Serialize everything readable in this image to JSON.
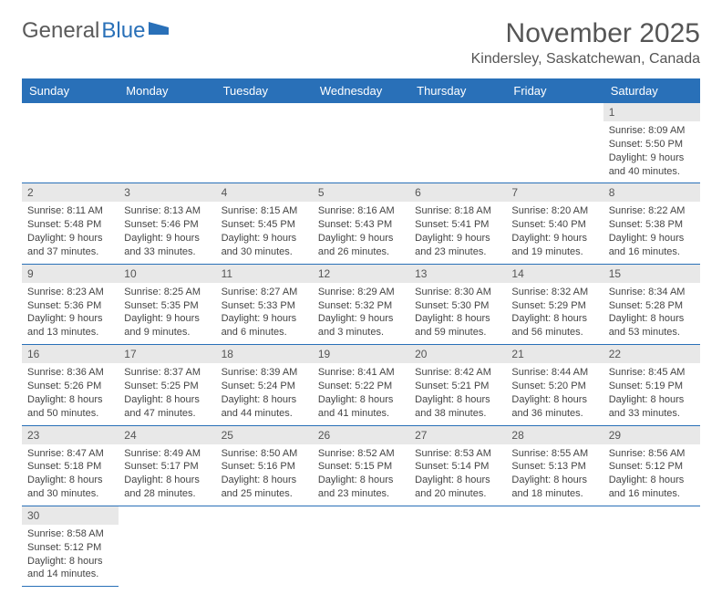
{
  "logo": {
    "text1": "General",
    "text2": "Blue"
  },
  "header": {
    "month": "November 2025",
    "location": "Kindersley, Saskatchewan, Canada"
  },
  "colors": {
    "header_bg": "#2970b8",
    "header_text": "#ffffff",
    "daynum_bg": "#e8e8e8",
    "border": "#2970b8"
  },
  "days_of_week": [
    "Sunday",
    "Monday",
    "Tuesday",
    "Wednesday",
    "Thursday",
    "Friday",
    "Saturday"
  ],
  "weeks": [
    [
      null,
      null,
      null,
      null,
      null,
      null,
      {
        "n": "1",
        "sr": "Sunrise: 8:09 AM",
        "ss": "Sunset: 5:50 PM",
        "dl": "Daylight: 9 hours and 40 minutes."
      }
    ],
    [
      {
        "n": "2",
        "sr": "Sunrise: 8:11 AM",
        "ss": "Sunset: 5:48 PM",
        "dl": "Daylight: 9 hours and 37 minutes."
      },
      {
        "n": "3",
        "sr": "Sunrise: 8:13 AM",
        "ss": "Sunset: 5:46 PM",
        "dl": "Daylight: 9 hours and 33 minutes."
      },
      {
        "n": "4",
        "sr": "Sunrise: 8:15 AM",
        "ss": "Sunset: 5:45 PM",
        "dl": "Daylight: 9 hours and 30 minutes."
      },
      {
        "n": "5",
        "sr": "Sunrise: 8:16 AM",
        "ss": "Sunset: 5:43 PM",
        "dl": "Daylight: 9 hours and 26 minutes."
      },
      {
        "n": "6",
        "sr": "Sunrise: 8:18 AM",
        "ss": "Sunset: 5:41 PM",
        "dl": "Daylight: 9 hours and 23 minutes."
      },
      {
        "n": "7",
        "sr": "Sunrise: 8:20 AM",
        "ss": "Sunset: 5:40 PM",
        "dl": "Daylight: 9 hours and 19 minutes."
      },
      {
        "n": "8",
        "sr": "Sunrise: 8:22 AM",
        "ss": "Sunset: 5:38 PM",
        "dl": "Daylight: 9 hours and 16 minutes."
      }
    ],
    [
      {
        "n": "9",
        "sr": "Sunrise: 8:23 AM",
        "ss": "Sunset: 5:36 PM",
        "dl": "Daylight: 9 hours and 13 minutes."
      },
      {
        "n": "10",
        "sr": "Sunrise: 8:25 AM",
        "ss": "Sunset: 5:35 PM",
        "dl": "Daylight: 9 hours and 9 minutes."
      },
      {
        "n": "11",
        "sr": "Sunrise: 8:27 AM",
        "ss": "Sunset: 5:33 PM",
        "dl": "Daylight: 9 hours and 6 minutes."
      },
      {
        "n": "12",
        "sr": "Sunrise: 8:29 AM",
        "ss": "Sunset: 5:32 PM",
        "dl": "Daylight: 9 hours and 3 minutes."
      },
      {
        "n": "13",
        "sr": "Sunrise: 8:30 AM",
        "ss": "Sunset: 5:30 PM",
        "dl": "Daylight: 8 hours and 59 minutes."
      },
      {
        "n": "14",
        "sr": "Sunrise: 8:32 AM",
        "ss": "Sunset: 5:29 PM",
        "dl": "Daylight: 8 hours and 56 minutes."
      },
      {
        "n": "15",
        "sr": "Sunrise: 8:34 AM",
        "ss": "Sunset: 5:28 PM",
        "dl": "Daylight: 8 hours and 53 minutes."
      }
    ],
    [
      {
        "n": "16",
        "sr": "Sunrise: 8:36 AM",
        "ss": "Sunset: 5:26 PM",
        "dl": "Daylight: 8 hours and 50 minutes."
      },
      {
        "n": "17",
        "sr": "Sunrise: 8:37 AM",
        "ss": "Sunset: 5:25 PM",
        "dl": "Daylight: 8 hours and 47 minutes."
      },
      {
        "n": "18",
        "sr": "Sunrise: 8:39 AM",
        "ss": "Sunset: 5:24 PM",
        "dl": "Daylight: 8 hours and 44 minutes."
      },
      {
        "n": "19",
        "sr": "Sunrise: 8:41 AM",
        "ss": "Sunset: 5:22 PM",
        "dl": "Daylight: 8 hours and 41 minutes."
      },
      {
        "n": "20",
        "sr": "Sunrise: 8:42 AM",
        "ss": "Sunset: 5:21 PM",
        "dl": "Daylight: 8 hours and 38 minutes."
      },
      {
        "n": "21",
        "sr": "Sunrise: 8:44 AM",
        "ss": "Sunset: 5:20 PM",
        "dl": "Daylight: 8 hours and 36 minutes."
      },
      {
        "n": "22",
        "sr": "Sunrise: 8:45 AM",
        "ss": "Sunset: 5:19 PM",
        "dl": "Daylight: 8 hours and 33 minutes."
      }
    ],
    [
      {
        "n": "23",
        "sr": "Sunrise: 8:47 AM",
        "ss": "Sunset: 5:18 PM",
        "dl": "Daylight: 8 hours and 30 minutes."
      },
      {
        "n": "24",
        "sr": "Sunrise: 8:49 AM",
        "ss": "Sunset: 5:17 PM",
        "dl": "Daylight: 8 hours and 28 minutes."
      },
      {
        "n": "25",
        "sr": "Sunrise: 8:50 AM",
        "ss": "Sunset: 5:16 PM",
        "dl": "Daylight: 8 hours and 25 minutes."
      },
      {
        "n": "26",
        "sr": "Sunrise: 8:52 AM",
        "ss": "Sunset: 5:15 PM",
        "dl": "Daylight: 8 hours and 23 minutes."
      },
      {
        "n": "27",
        "sr": "Sunrise: 8:53 AM",
        "ss": "Sunset: 5:14 PM",
        "dl": "Daylight: 8 hours and 20 minutes."
      },
      {
        "n": "28",
        "sr": "Sunrise: 8:55 AM",
        "ss": "Sunset: 5:13 PM",
        "dl": "Daylight: 8 hours and 18 minutes."
      },
      {
        "n": "29",
        "sr": "Sunrise: 8:56 AM",
        "ss": "Sunset: 5:12 PM",
        "dl": "Daylight: 8 hours and 16 minutes."
      }
    ],
    [
      {
        "n": "30",
        "sr": "Sunrise: 8:58 AM",
        "ss": "Sunset: 5:12 PM",
        "dl": "Daylight: 8 hours and 14 minutes."
      },
      null,
      null,
      null,
      null,
      null,
      null
    ]
  ]
}
